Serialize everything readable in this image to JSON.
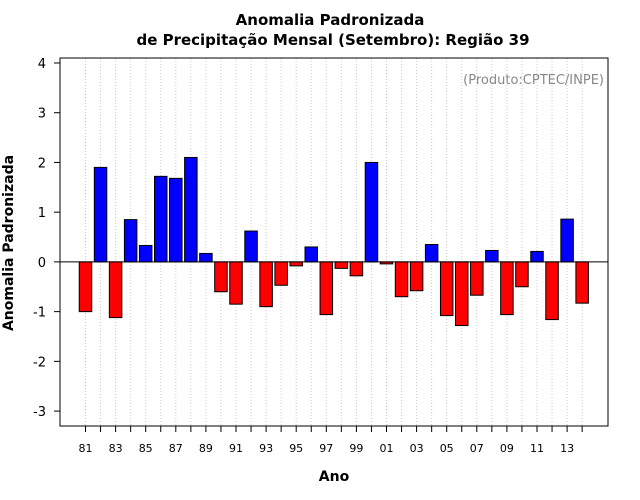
{
  "chart_data": {
    "type": "bar",
    "title": "Anomalia Padronizada",
    "subtitle": "de Precipitação Mensal (Setembro): Região 39",
    "xlabel": "Ano",
    "ylabel": "Anomalia Padronizada",
    "credit": "(Produto:CPTEC/INPE)",
    "ylim": [
      -3.3,
      4.1
    ],
    "yticks": [
      "-3",
      "-2",
      "-1",
      "0",
      "1",
      "2",
      "3",
      "4"
    ],
    "categories": [
      "81",
      "82",
      "83",
      "84",
      "85",
      "86",
      "87",
      "88",
      "89",
      "90",
      "91",
      "92",
      "93",
      "94",
      "95",
      "96",
      "97",
      "98",
      "99",
      "00",
      "01",
      "02",
      "03",
      "04",
      "05",
      "06",
      "07",
      "08",
      "09",
      "10",
      "11",
      "12",
      "13",
      "14"
    ],
    "xtick_labels": [
      "81",
      "83",
      "85",
      "87",
      "89",
      "91",
      "93",
      "95",
      "97",
      "99",
      "01",
      "03",
      "05",
      "07",
      "09",
      "11",
      "13"
    ],
    "values": [
      -1.0,
      1.9,
      -1.12,
      0.85,
      0.33,
      1.72,
      1.68,
      2.1,
      0.17,
      -0.6,
      -0.85,
      0.62,
      -0.9,
      -0.47,
      -0.08,
      0.3,
      -1.06,
      -0.13,
      -0.28,
      2.0,
      -0.04,
      -0.7,
      -0.58,
      0.35,
      -1.08,
      -1.28,
      -0.67,
      0.23,
      -1.06,
      -0.5,
      0.21,
      -1.16,
      0.86,
      -0.83
    ],
    "colors": {
      "positive": "#0000ff",
      "negative": "#ff0000",
      "grid": "#c8c8c8"
    },
    "grid": true
  }
}
